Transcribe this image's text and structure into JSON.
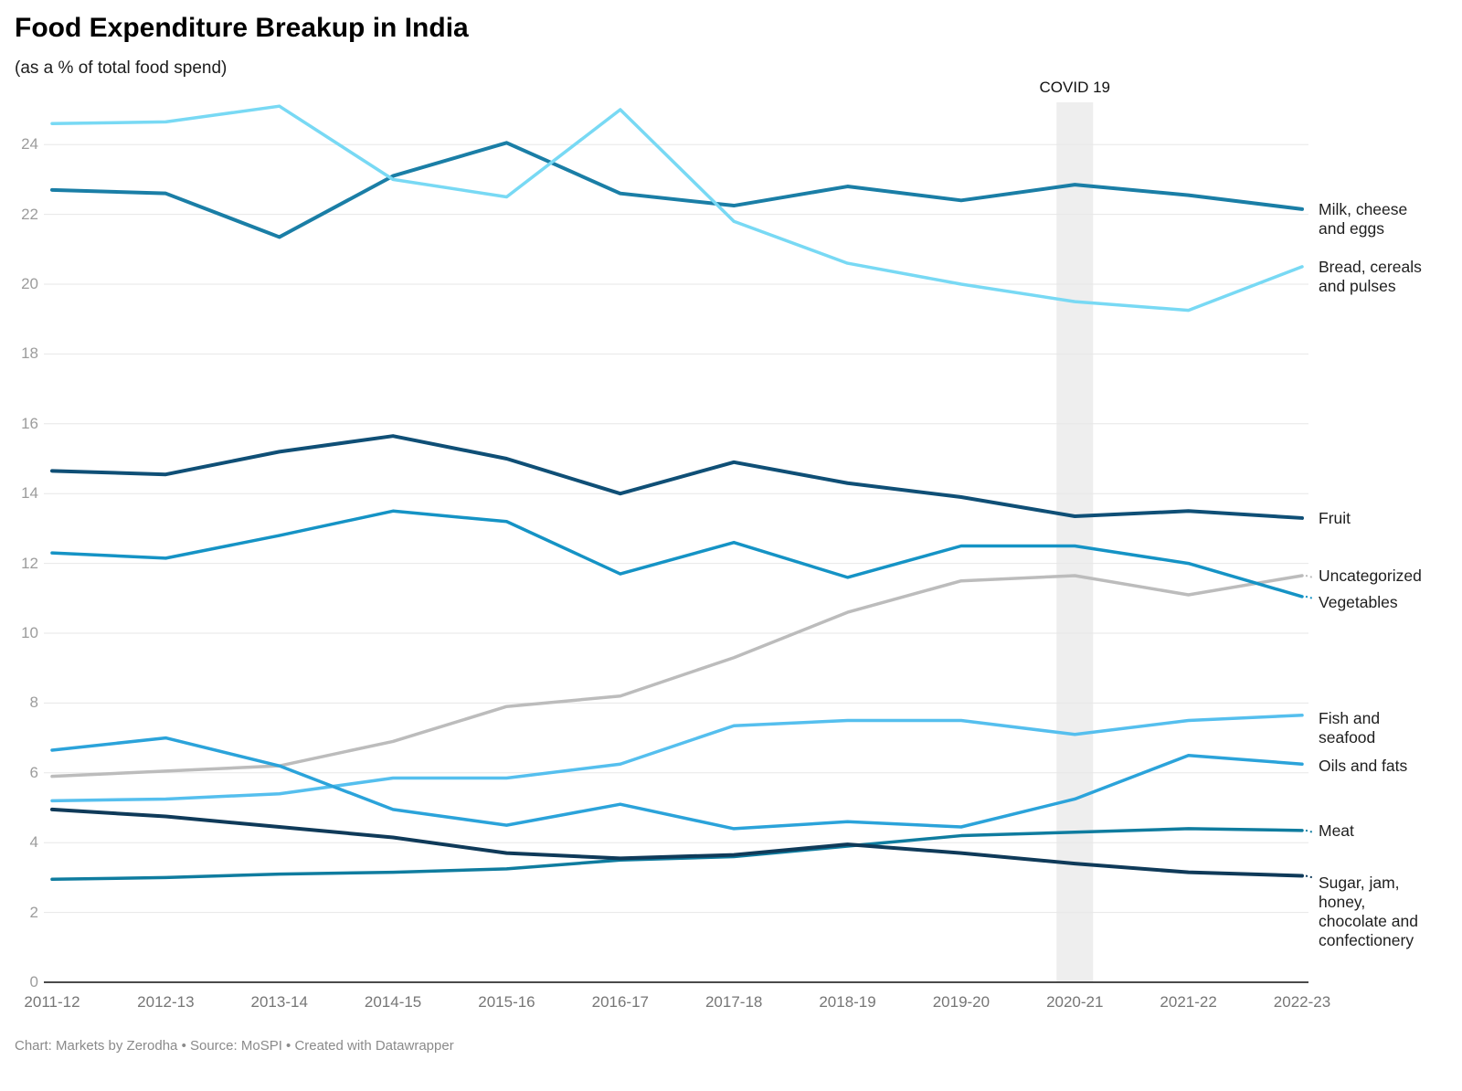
{
  "header": {
    "title": "Food Expenditure Breakup in India",
    "subtitle": "(as a % of total food spend)"
  },
  "footer": {
    "credit": "Chart: Markets by Zerodha • Source: MoSPI • Created with Datawrapper"
  },
  "chart_data": {
    "type": "line",
    "title": "Food Expenditure Breakup in India",
    "subtitle": "(as a % of total food spend)",
    "xlabel": "",
    "ylabel": "% of total food spend",
    "grid": true,
    "legend_position": "right-edge-labels",
    "ylim": [
      0,
      25.5
    ],
    "yticks": [
      0,
      2,
      4,
      6,
      8,
      10,
      12,
      14,
      16,
      18,
      20,
      22,
      24
    ],
    "x": [
      "2011-12",
      "2012-13",
      "2013-14",
      "2014-15",
      "2015-16",
      "2016-17",
      "2017-18",
      "2018-19",
      "2019-20",
      "2020-21",
      "2021-22",
      "2022-23"
    ],
    "annotations": [
      {
        "type": "vertical-band",
        "x": "2020-21",
        "label": "COVID 19"
      }
    ],
    "series": [
      {
        "name": "Milk, cheese and eggs",
        "color": "#1a7ea6",
        "width": 4,
        "label_lines": [
          "Milk, cheese",
          "and eggs"
        ],
        "connector": false,
        "label_nudge": 0,
        "values": [
          22.7,
          22.6,
          21.35,
          23.1,
          24.05,
          22.6,
          22.25,
          22.8,
          22.4,
          22.85,
          22.55,
          22.15
        ]
      },
      {
        "name": "Bread, cereals and pulses",
        "color": "#78d9f4",
        "width": 3.5,
        "label_lines": [
          "Bread, cereals",
          "and pulses"
        ],
        "connector": false,
        "label_nudge": 0,
        "values": [
          24.6,
          24.65,
          25.1,
          23.0,
          22.5,
          25.0,
          21.8,
          20.6,
          20.0,
          19.5,
          19.25,
          20.5
        ]
      },
      {
        "name": "Fruit",
        "color": "#0f4f76",
        "width": 4,
        "label_lines": [
          "Fruit"
        ],
        "connector": false,
        "label_nudge": 0,
        "values": [
          14.65,
          14.55,
          15.2,
          15.65,
          15.0,
          14.0,
          14.9,
          14.3,
          13.9,
          13.35,
          13.5,
          13.3
        ]
      },
      {
        "name": "Uncategorized",
        "color": "#bcbcbc",
        "width": 3.5,
        "label_lines": [
          "Uncategorized"
        ],
        "connector": true,
        "label_nudge": 0,
        "values": [
          5.9,
          6.05,
          6.2,
          6.9,
          7.9,
          8.2,
          9.3,
          10.6,
          11.5,
          11.65,
          11.1,
          11.65
        ]
      },
      {
        "name": "Vegetables",
        "color": "#1593c5",
        "width": 3.5,
        "label_lines": [
          "Vegetables"
        ],
        "connector": true,
        "label_nudge": 6,
        "values": [
          12.3,
          12.15,
          12.8,
          13.5,
          13.2,
          11.7,
          12.6,
          11.6,
          12.5,
          12.5,
          12.0,
          11.05
        ]
      },
      {
        "name": "Fish and seafood",
        "color": "#55bfee",
        "width": 3.5,
        "label_lines": [
          "Fish and",
          "seafood"
        ],
        "connector": false,
        "label_nudge": 3,
        "values": [
          5.2,
          5.25,
          5.4,
          5.85,
          5.85,
          6.25,
          7.35,
          7.5,
          7.5,
          7.1,
          7.5,
          7.65
        ]
      },
      {
        "name": "Oils and fats",
        "color": "#2ba3da",
        "width": 3.5,
        "label_lines": [
          "Oils and fats"
        ],
        "connector": false,
        "label_nudge": 2,
        "values": [
          6.65,
          7.0,
          6.2,
          4.95,
          4.5,
          5.1,
          4.4,
          4.6,
          4.45,
          5.25,
          6.5,
          6.25
        ]
      },
      {
        "name": "Meat",
        "color": "#0f7c9f",
        "width": 3.5,
        "label_lines": [
          "Meat"
        ],
        "connector": true,
        "label_nudge": 0,
        "values": [
          2.95,
          3.0,
          3.1,
          3.15,
          3.25,
          3.5,
          3.6,
          3.9,
          4.2,
          4.3,
          4.4,
          4.35
        ]
      },
      {
        "name": "Sugar, jam, honey, chocolate and confectionery",
        "color": "#0f3a59",
        "width": 4,
        "label_lines": [
          "Sugar, jam,",
          "honey,",
          "chocolate and",
          "confectionery"
        ],
        "connector": true,
        "label_nudge": 8,
        "values": [
          4.95,
          4.75,
          4.45,
          4.15,
          3.7,
          3.55,
          3.65,
          3.95,
          3.7,
          3.4,
          3.15,
          3.05
        ]
      }
    ]
  }
}
